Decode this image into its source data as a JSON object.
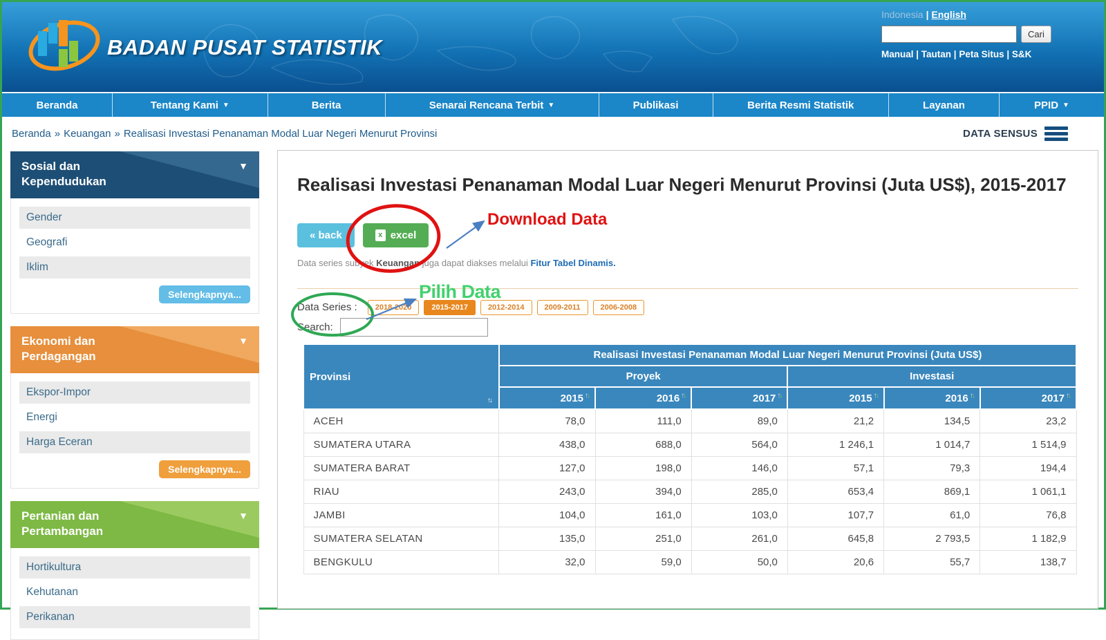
{
  "colors": {
    "nav_blue": "#1b86c8",
    "table_header_blue": "#3a87bd",
    "series_active_orange": "#e8871e",
    "back_button_blue": "#5bc0de",
    "excel_button_green": "#54ad54",
    "annotation_red": "#e01212",
    "annotation_green": "#2fa854",
    "pilih_text_green": "#43d16e",
    "arrow_blue": "#4a7fc1",
    "page_border_green": "#35a455"
  },
  "icons": {
    "caret_down": "▼",
    "sort_up": "↑",
    "sort_down": "↓",
    "back_chevrons": "«",
    "excel_file": "x",
    "hamburger": "menu-bars"
  },
  "header": {
    "brand": "BADAN PUSAT STATISTIK",
    "lang_indonesia": "Indonesia",
    "lang_sep": "|",
    "lang_english": "English",
    "search_value": "",
    "search_button": "Cari",
    "links": [
      "Manual",
      "Tautan",
      "Peta Situs",
      "S&K"
    ],
    "links_sep": " | "
  },
  "nav": {
    "items": [
      {
        "id": "beranda",
        "label": "Beranda",
        "dropdown": false,
        "flex": "160"
      },
      {
        "id": "tentang-kami",
        "label": "Tentang Kami",
        "dropdown": true,
        "flex": "225"
      },
      {
        "id": "berita",
        "label": "Berita",
        "dropdown": false,
        "flex": "170"
      },
      {
        "id": "senarai-rencana-terbit",
        "label": "Senarai Rencana Terbit",
        "dropdown": true,
        "flex": "310"
      },
      {
        "id": "publikasi",
        "label": "Publikasi",
        "dropdown": false,
        "flex": "165"
      },
      {
        "id": "berita-resmi-statistik",
        "label": "Berita Resmi Statistik",
        "dropdown": false,
        "flex": "255"
      },
      {
        "id": "layanan",
        "label": "Layanan",
        "dropdown": false,
        "flex": "160"
      },
      {
        "id": "ppid",
        "label": "PPID",
        "dropdown": true,
        "flex": "152"
      }
    ]
  },
  "breadcrumb": {
    "separator": "»",
    "parts": [
      "Beranda",
      "Keuangan",
      "Realisasi Investasi Penanaman Modal Luar Negeri Menurut Provinsi"
    ]
  },
  "data_sensus_label": "DATA SENSUS",
  "sidebar": {
    "sections": [
      {
        "id": "sosial-dan-kependudukan",
        "title_lines": [
          "Sosial dan",
          "Kependudukan"
        ],
        "color_dark": "#1d4e75",
        "color_light": "#35688f",
        "items": [
          "Gender",
          "Geografi",
          "Iklim"
        ],
        "more_label": "Selengkapnya...",
        "more_color": "#63bde6"
      },
      {
        "id": "ekonomi-dan-perdagangan",
        "title_lines": [
          "Ekonomi dan",
          "Perdagangan"
        ],
        "color_dark": "#e78f3c",
        "color_light": "#f0a95f",
        "items": [
          "Ekspor-Impor",
          "Energi",
          "Harga Eceran"
        ],
        "more_label": "Selengkapnya...",
        "more_color": "#f09f3d"
      },
      {
        "id": "pertanian-dan-pertambangan",
        "title_lines": [
          "Pertanian dan",
          "Pertambangan"
        ],
        "color_dark": "#7db944",
        "color_light": "#9bcb60",
        "items": [
          "Hortikultura",
          "Kehutanan",
          "Perikanan"
        ],
        "more_label": null,
        "more_color": null
      }
    ]
  },
  "main": {
    "title": "Realisasi Investasi Penanaman Modal Luar Negeri Menurut Provinsi (Juta US$), 2015-2017",
    "back_label": "« back",
    "excel_label": "excel",
    "note": {
      "prefix": "Data series subyek ",
      "bold": "Keuangan",
      "middle": " juga dapat diakses melalui ",
      "link": "Fitur Tabel Dinamis."
    },
    "data_series_label": "Data Series :",
    "series_buttons": [
      {
        "label": "2018-2020",
        "active": false
      },
      {
        "label": "2015-2017",
        "active": true
      },
      {
        "label": "2012-2014",
        "active": false
      },
      {
        "label": "2009-2011",
        "active": false
      },
      {
        "label": "2006-2008",
        "active": false
      }
    ],
    "search_label": "Search:",
    "search_value": ""
  },
  "annotations": {
    "download_label": "Download Data",
    "pilih_label": "Pilih Data"
  },
  "table": {
    "province_header": "Provinsi",
    "span_header": "Realisasi Investasi Penanaman Modal Luar Negeri Menurut Provinsi (Juta US$)",
    "group_headers": [
      "Proyek",
      "Investasi"
    ],
    "year_headers": [
      "2015",
      "2016",
      "2017",
      "2015",
      "2016",
      "2017"
    ],
    "rows": [
      {
        "province": "ACEH",
        "values": [
          "78,0",
          "111,0",
          "89,0",
          "21,2",
          "134,5",
          "23,2"
        ]
      },
      {
        "province": "SUMATERA UTARA",
        "values": [
          "438,0",
          "688,0",
          "564,0",
          "1 246,1",
          "1 014,7",
          "1 514,9"
        ]
      },
      {
        "province": "SUMATERA BARAT",
        "values": [
          "127,0",
          "198,0",
          "146,0",
          "57,1",
          "79,3",
          "194,4"
        ]
      },
      {
        "province": "RIAU",
        "values": [
          "243,0",
          "394,0",
          "285,0",
          "653,4",
          "869,1",
          "1 061,1"
        ]
      },
      {
        "province": "JAMBI",
        "values": [
          "104,0",
          "161,0",
          "103,0",
          "107,7",
          "61,0",
          "76,8"
        ]
      },
      {
        "province": "SUMATERA SELATAN",
        "values": [
          "135,0",
          "251,0",
          "261,0",
          "645,8",
          "2 793,5",
          "1 182,9"
        ]
      },
      {
        "province": "BENGKULU",
        "values": [
          "32,0",
          "59,0",
          "50,0",
          "20,6",
          "55,7",
          "138,7"
        ]
      }
    ]
  }
}
